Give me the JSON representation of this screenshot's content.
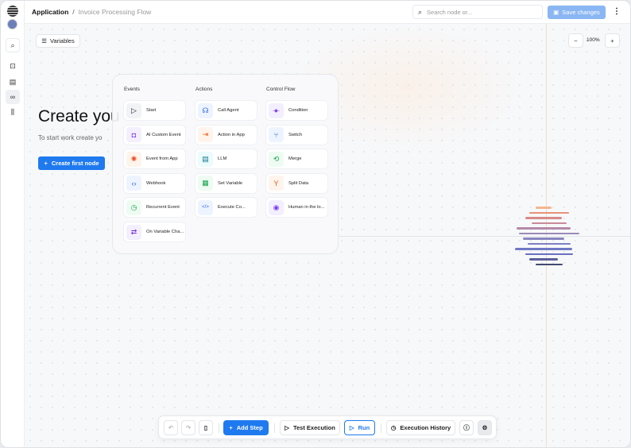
{
  "header": {
    "app": "Application",
    "separator": "/",
    "flow": "Invoice Processing Flow",
    "search_placeholder": "Search node or...",
    "save": "Save changes",
    "more": "⋮"
  },
  "sidebar": {
    "items": [
      {
        "icon": "search-icon",
        "glyph": "⌕"
      },
      {
        "icon": "bot-icon",
        "glyph": "⊡"
      },
      {
        "icon": "clipboard-icon",
        "glyph": "▤"
      },
      {
        "icon": "link-icon",
        "glyph": "∞"
      },
      {
        "icon": "library-icon",
        "glyph": "⫼"
      }
    ]
  },
  "canvas": {
    "variables": "Variables",
    "zoom": "100%",
    "zoom_out": "−",
    "zoom_in": "+",
    "title": "Create you",
    "subtitle": "To start work create yo",
    "create_button": "Create first node"
  },
  "panel": {
    "columns": [
      {
        "title": "Events",
        "items": [
          {
            "label": "Start",
            "glyph": "▷",
            "color": "#222",
            "bg": "#f1f3f6"
          },
          {
            "label": "AI Custom Event",
            "glyph": "◘",
            "color": "#7c3aed",
            "bg": "#f3efff"
          },
          {
            "label": "Event from App",
            "glyph": "✺",
            "color": "#f04c1c",
            "bg": "#fff4ec"
          },
          {
            "label": "Webhook",
            "glyph": "‹›",
            "color": "#2563eb",
            "bg": "#eef4ff"
          },
          {
            "label": "Recurrent Event",
            "glyph": "◷",
            "color": "#16a34a",
            "bg": "#eefbf2"
          },
          {
            "label": "On Variable Cha...",
            "glyph": "⇄",
            "color": "#6d28d9",
            "bg": "#f3efff"
          }
        ]
      },
      {
        "title": "Actions",
        "items": [
          {
            "label": "Call Agent",
            "glyph": "☊",
            "color": "#2563eb",
            "bg": "#eef4ff"
          },
          {
            "label": "Action in App",
            "glyph": "⇥",
            "color": "#ea580c",
            "bg": "#fff4ec"
          },
          {
            "label": "LLM",
            "glyph": "▤",
            "color": "#0e7490",
            "bg": "#ecfbfb"
          },
          {
            "label": "Set Variable",
            "glyph": "▦",
            "color": "#16a34a",
            "bg": "#eefbf2"
          },
          {
            "label": "Execute Co...",
            "glyph": "</>",
            "color": "#2563eb",
            "bg": "#eef4ff"
          }
        ]
      },
      {
        "title": "Control Flow",
        "items": [
          {
            "label": "Condition",
            "glyph": "-◆-",
            "color": "#7c3aed",
            "bg": "#f3efff"
          },
          {
            "label": "Switch",
            "glyph": "⑂",
            "color": "#2563eb",
            "bg": "#eef4ff"
          },
          {
            "label": "Merge",
            "glyph": "⟲",
            "color": "#16a34a",
            "bg": "#eefbf2"
          },
          {
            "label": "Split Data",
            "glyph": "Y",
            "color": "#ea580c",
            "bg": "#fff4ec"
          },
          {
            "label": "Human in the lo...",
            "glyph": "◉",
            "color": "#7c3aed",
            "bg": "#f3efff"
          }
        ]
      }
    ]
  },
  "toolbar": {
    "add_step": "Add Step",
    "test": "Test Execution",
    "run": "Run",
    "history": "Execution History"
  },
  "colors": {
    "accent": "#1f7aef",
    "save_disabled": "#8ab6f3"
  }
}
